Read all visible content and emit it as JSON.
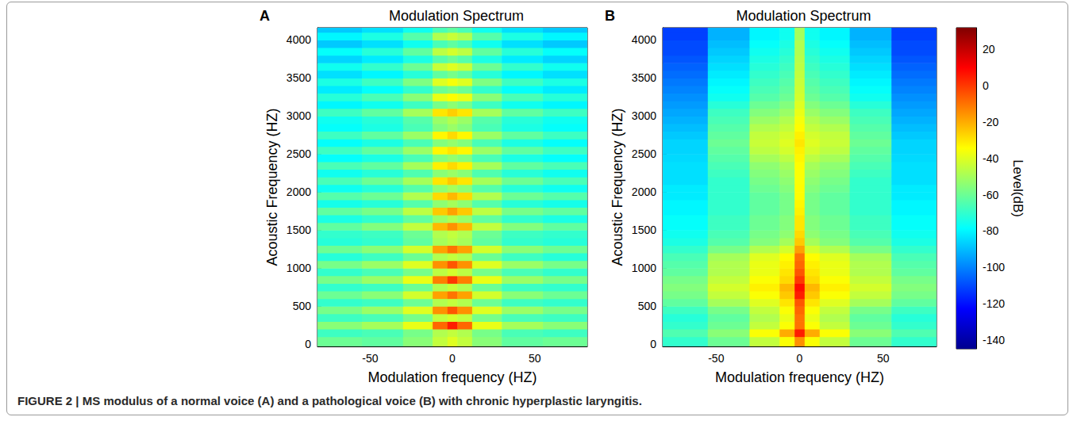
{
  "caption": "FIGURE 2 | MS modulus of a normal voice (A) and a pathological voice (B) with chronic hyperplastic laryngitis.",
  "colorbar": {
    "label": "Level(dB)",
    "range": [
      -145,
      32
    ],
    "ticks": [
      -140,
      -120,
      -100,
      -80,
      -60,
      -40,
      -20,
      0,
      20
    ]
  },
  "chart_data": [
    {
      "type": "heatmap",
      "annotation": "A",
      "title": "Modulation Spectrum",
      "xlabel": "Modulation frequency (HZ)",
      "ylabel": "Acoustic Frequency (HZ)",
      "xlim": [
        -82,
        82
      ],
      "ylim": [
        -30,
        4160
      ],
      "xticks": [
        -50,
        0,
        50
      ],
      "yticks": [
        0,
        500,
        1000,
        1500,
        2000,
        2500,
        3000,
        3500,
        4000
      ],
      "grid": false,
      "x_edges": [
        -82,
        -55,
        -30,
        -12,
        -3,
        3,
        12,
        30,
        55,
        82
      ],
      "y_edges": [
        -30,
        100,
        200,
        300,
        400,
        500,
        600,
        700,
        800,
        900,
        1000,
        1100,
        1200,
        1300,
        1400,
        1500,
        1600,
        1700,
        1800,
        1900,
        2000,
        2100,
        2200,
        2300,
        2400,
        2500,
        2600,
        2700,
        2800,
        2900,
        3000,
        3100,
        3200,
        3300,
        3400,
        3500,
        3600,
        3700,
        3800,
        3900,
        4000,
        4100,
        4160
      ],
      "cells": [
        [
          -60,
          -62,
          -55,
          -45,
          -40,
          -45,
          -55,
          -62,
          -60
        ],
        [
          -68,
          -66,
          -58,
          -48,
          -45,
          -48,
          -58,
          -66,
          -68
        ],
        [
          -55,
          -50,
          -38,
          -8,
          5,
          -8,
          -38,
          -50,
          -55
        ],
        [
          -68,
          -66,
          -58,
          -45,
          -42,
          -45,
          -58,
          -66,
          -68
        ],
        [
          -58,
          -52,
          -40,
          -15,
          -5,
          -15,
          -40,
          -52,
          -58
        ],
        [
          -70,
          -68,
          -60,
          -48,
          -45,
          -48,
          -60,
          -68,
          -70
        ],
        [
          -60,
          -55,
          -42,
          -18,
          -10,
          -18,
          -42,
          -55,
          -60
        ],
        [
          -70,
          -68,
          -60,
          -48,
          -44,
          -48,
          -60,
          -68,
          -70
        ],
        [
          -58,
          -52,
          -38,
          -12,
          0,
          -12,
          -38,
          -52,
          -58
        ],
        [
          -70,
          -66,
          -58,
          -46,
          -42,
          -46,
          -58,
          -66,
          -70
        ],
        [
          -58,
          -52,
          -40,
          -15,
          -5,
          -15,
          -40,
          -52,
          -58
        ],
        [
          -72,
          -68,
          -60,
          -48,
          -45,
          -48,
          -60,
          -68,
          -72
        ],
        [
          -60,
          -55,
          -42,
          -18,
          -10,
          -18,
          -42,
          -55,
          -60
        ],
        [
          -72,
          -70,
          -62,
          -50,
          -47,
          -50,
          -62,
          -70,
          -72
        ],
        [
          -70,
          -68,
          -60,
          -48,
          -45,
          -48,
          -60,
          -68,
          -70
        ],
        [
          -62,
          -56,
          -45,
          -22,
          -15,
          -22,
          -45,
          -56,
          -62
        ],
        [
          -74,
          -70,
          -62,
          -52,
          -48,
          -52,
          -62,
          -70,
          -74
        ],
        [
          -62,
          -58,
          -46,
          -25,
          -18,
          -25,
          -46,
          -58,
          -62
        ],
        [
          -75,
          -72,
          -64,
          -54,
          -50,
          -54,
          -64,
          -72,
          -75
        ],
        [
          -64,
          -60,
          -48,
          -28,
          -22,
          -28,
          -48,
          -60,
          -64
        ],
        [
          -76,
          -72,
          -64,
          -54,
          -50,
          -54,
          -64,
          -72,
          -76
        ],
        [
          -66,
          -60,
          -50,
          -30,
          -25,
          -30,
          -50,
          -60,
          -66
        ],
        [
          -76,
          -72,
          -65,
          -55,
          -52,
          -55,
          -65,
          -72,
          -76
        ],
        [
          -66,
          -62,
          -50,
          -32,
          -28,
          -32,
          -50,
          -62,
          -66
        ],
        [
          -78,
          -74,
          -66,
          -56,
          -53,
          -56,
          -66,
          -74,
          -78
        ],
        [
          -68,
          -62,
          -52,
          -33,
          -30,
          -33,
          -52,
          -62,
          -68
        ],
        [
          -78,
          -74,
          -66,
          -56,
          -53,
          -56,
          -66,
          -74,
          -78
        ],
        [
          -68,
          -62,
          -52,
          -33,
          -28,
          -33,
          -52,
          -62,
          -68
        ],
        [
          -78,
          -74,
          -66,
          -56,
          -52,
          -56,
          -66,
          -74,
          -78
        ],
        [
          -76,
          -72,
          -64,
          -52,
          -48,
          -52,
          -64,
          -72,
          -76
        ],
        [
          -68,
          -62,
          -50,
          -30,
          -26,
          -30,
          -50,
          -62,
          -68
        ],
        [
          -80,
          -76,
          -68,
          -58,
          -54,
          -58,
          -68,
          -76,
          -80
        ],
        [
          -72,
          -66,
          -55,
          -38,
          -34,
          -38,
          -55,
          -66,
          -72
        ],
        [
          -82,
          -78,
          -70,
          -60,
          -57,
          -60,
          -70,
          -78,
          -82
        ],
        [
          -74,
          -68,
          -57,
          -40,
          -36,
          -40,
          -57,
          -68,
          -74
        ],
        [
          -84,
          -80,
          -72,
          -62,
          -58,
          -62,
          -72,
          -80,
          -84
        ],
        [
          -76,
          -70,
          -60,
          -44,
          -40,
          -44,
          -60,
          -70,
          -76
        ],
        [
          -86,
          -82,
          -74,
          -64,
          -60,
          -64,
          -74,
          -82,
          -86
        ],
        [
          -78,
          -72,
          -62,
          -46,
          -42,
          -46,
          -62,
          -72,
          -78
        ],
        [
          -88,
          -84,
          -76,
          -66,
          -62,
          -66,
          -76,
          -84,
          -88
        ],
        [
          -80,
          -74,
          -64,
          -48,
          -44,
          -48,
          -64,
          -74,
          -80
        ],
        [
          -88,
          -84,
          -76,
          -66,
          -62,
          -66,
          -76,
          -84,
          -88
        ]
      ]
    },
    {
      "type": "heatmap",
      "annotation": "B",
      "title": "Modulation Spectrum",
      "xlabel": "Modulation frequency (HZ)",
      "ylabel": "Acoustic Frequency (HZ)",
      "xlim": [
        -82,
        82
      ],
      "ylim": [
        -30,
        4160
      ],
      "xticks": [
        -50,
        0,
        50
      ],
      "yticks": [
        0,
        500,
        1000,
        1500,
        2000,
        2500,
        3000,
        3500,
        4000
      ],
      "grid": false,
      "x_edges": [
        -82,
        -55,
        -30,
        -12,
        -3,
        3,
        12,
        30,
        55,
        82
      ],
      "y_edges": [
        -30,
        100,
        200,
        300,
        400,
        500,
        600,
        700,
        800,
        900,
        1000,
        1100,
        1200,
        1300,
        1400,
        1500,
        1600,
        1700,
        1800,
        1900,
        2000,
        2100,
        2200,
        2300,
        2400,
        2500,
        2600,
        2700,
        2800,
        2900,
        3000,
        3100,
        3200,
        3300,
        3400,
        3500,
        3600,
        3700,
        3800,
        3900,
        4000,
        4100,
        4160
      ],
      "cells": [
        [
          -70,
          -60,
          -45,
          -35,
          -15,
          -35,
          -45,
          -60,
          -70
        ],
        [
          -65,
          -55,
          -35,
          -20,
          5,
          -20,
          -35,
          -55,
          -65
        ],
        [
          -70,
          -60,
          -45,
          -35,
          -10,
          -35,
          -45,
          -60,
          -70
        ],
        [
          -72,
          -62,
          -48,
          -38,
          -10,
          -38,
          -48,
          -62,
          -72
        ],
        [
          -68,
          -58,
          -45,
          -35,
          -8,
          -35,
          -45,
          -58,
          -68
        ],
        [
          -62,
          -50,
          -40,
          -30,
          -5,
          -30,
          -40,
          -50,
          -62
        ],
        [
          -58,
          -45,
          -35,
          -25,
          5,
          -25,
          -35,
          -45,
          -58
        ],
        [
          -56,
          -42,
          -32,
          -22,
          8,
          -22,
          -32,
          -42,
          -56
        ],
        [
          -58,
          -45,
          -35,
          -28,
          0,
          -28,
          -35,
          -45,
          -58
        ],
        [
          -62,
          -48,
          -38,
          -30,
          -5,
          -30,
          -38,
          -48,
          -62
        ],
        [
          -64,
          -48,
          -38,
          -32,
          -8,
          -32,
          -38,
          -48,
          -64
        ],
        [
          -66,
          -50,
          -40,
          -34,
          -10,
          -34,
          -40,
          -50,
          -66
        ],
        [
          -70,
          -58,
          -48,
          -42,
          -18,
          -42,
          -48,
          -58,
          -70
        ],
        [
          -74,
          -64,
          -56,
          -50,
          -25,
          -50,
          -56,
          -64,
          -74
        ],
        [
          -76,
          -66,
          -58,
          -54,
          -28,
          -54,
          -58,
          -66,
          -76
        ],
        [
          -78,
          -68,
          -60,
          -56,
          -30,
          -56,
          -60,
          -68,
          -78
        ],
        [
          -78,
          -68,
          -60,
          -56,
          -30,
          -56,
          -60,
          -68,
          -78
        ],
        [
          -80,
          -70,
          -62,
          -58,
          -32,
          -58,
          -62,
          -70,
          -80
        ],
        [
          -80,
          -70,
          -62,
          -58,
          -33,
          -58,
          -62,
          -70,
          -80
        ],
        [
          -82,
          -70,
          -62,
          -58,
          -34,
          -58,
          -62,
          -70,
          -82
        ],
        [
          -82,
          -70,
          -60,
          -56,
          -34,
          -56,
          -60,
          -70,
          -82
        ],
        [
          -84,
          -70,
          -58,
          -54,
          -35,
          -54,
          -58,
          -70,
          -84
        ],
        [
          -84,
          -68,
          -56,
          -52,
          -35,
          -52,
          -56,
          -68,
          -84
        ],
        [
          -84,
          -66,
          -54,
          -50,
          -34,
          -50,
          -54,
          -66,
          -84
        ],
        [
          -85,
          -64,
          -50,
          -46,
          -33,
          -46,
          -50,
          -64,
          -85
        ],
        [
          -86,
          -62,
          -46,
          -42,
          -32,
          -42,
          -46,
          -62,
          -86
        ],
        [
          -86,
          -60,
          -44,
          -40,
          -30,
          -40,
          -44,
          -60,
          -86
        ],
        [
          -88,
          -62,
          -45,
          -42,
          -32,
          -42,
          -45,
          -62,
          -88
        ],
        [
          -90,
          -64,
          -48,
          -45,
          -34,
          -45,
          -48,
          -64,
          -90
        ],
        [
          -92,
          -66,
          -52,
          -48,
          -36,
          -48,
          -52,
          -66,
          -92
        ],
        [
          -94,
          -68,
          -56,
          -52,
          -38,
          -52,
          -56,
          -68,
          -94
        ],
        [
          -96,
          -72,
          -60,
          -56,
          -40,
          -56,
          -60,
          -72,
          -96
        ],
        [
          -98,
          -76,
          -64,
          -60,
          -42,
          -60,
          -64,
          -76,
          -98
        ],
        [
          -100,
          -78,
          -66,
          -62,
          -43,
          -62,
          -66,
          -78,
          -100
        ],
        [
          -102,
          -80,
          -68,
          -64,
          -44,
          -64,
          -68,
          -80,
          -102
        ],
        [
          -104,
          -82,
          -70,
          -66,
          -45,
          -66,
          -70,
          -82,
          -104
        ],
        [
          -106,
          -84,
          -72,
          -68,
          -46,
          -68,
          -72,
          -84,
          -106
        ],
        [
          -108,
          -86,
          -74,
          -70,
          -47,
          -70,
          -74,
          -86,
          -108
        ],
        [
          -110,
          -88,
          -76,
          -72,
          -48,
          -72,
          -76,
          -88,
          -110
        ],
        [
          -110,
          -90,
          -78,
          -74,
          -48,
          -74,
          -78,
          -90,
          -110
        ],
        [
          -112,
          -92,
          -80,
          -76,
          -50,
          -76,
          -80,
          -92,
          -112
        ],
        [
          -112,
          -92,
          -80,
          -76,
          -50,
          -76,
          -80,
          -92,
          -112
        ]
      ]
    }
  ]
}
